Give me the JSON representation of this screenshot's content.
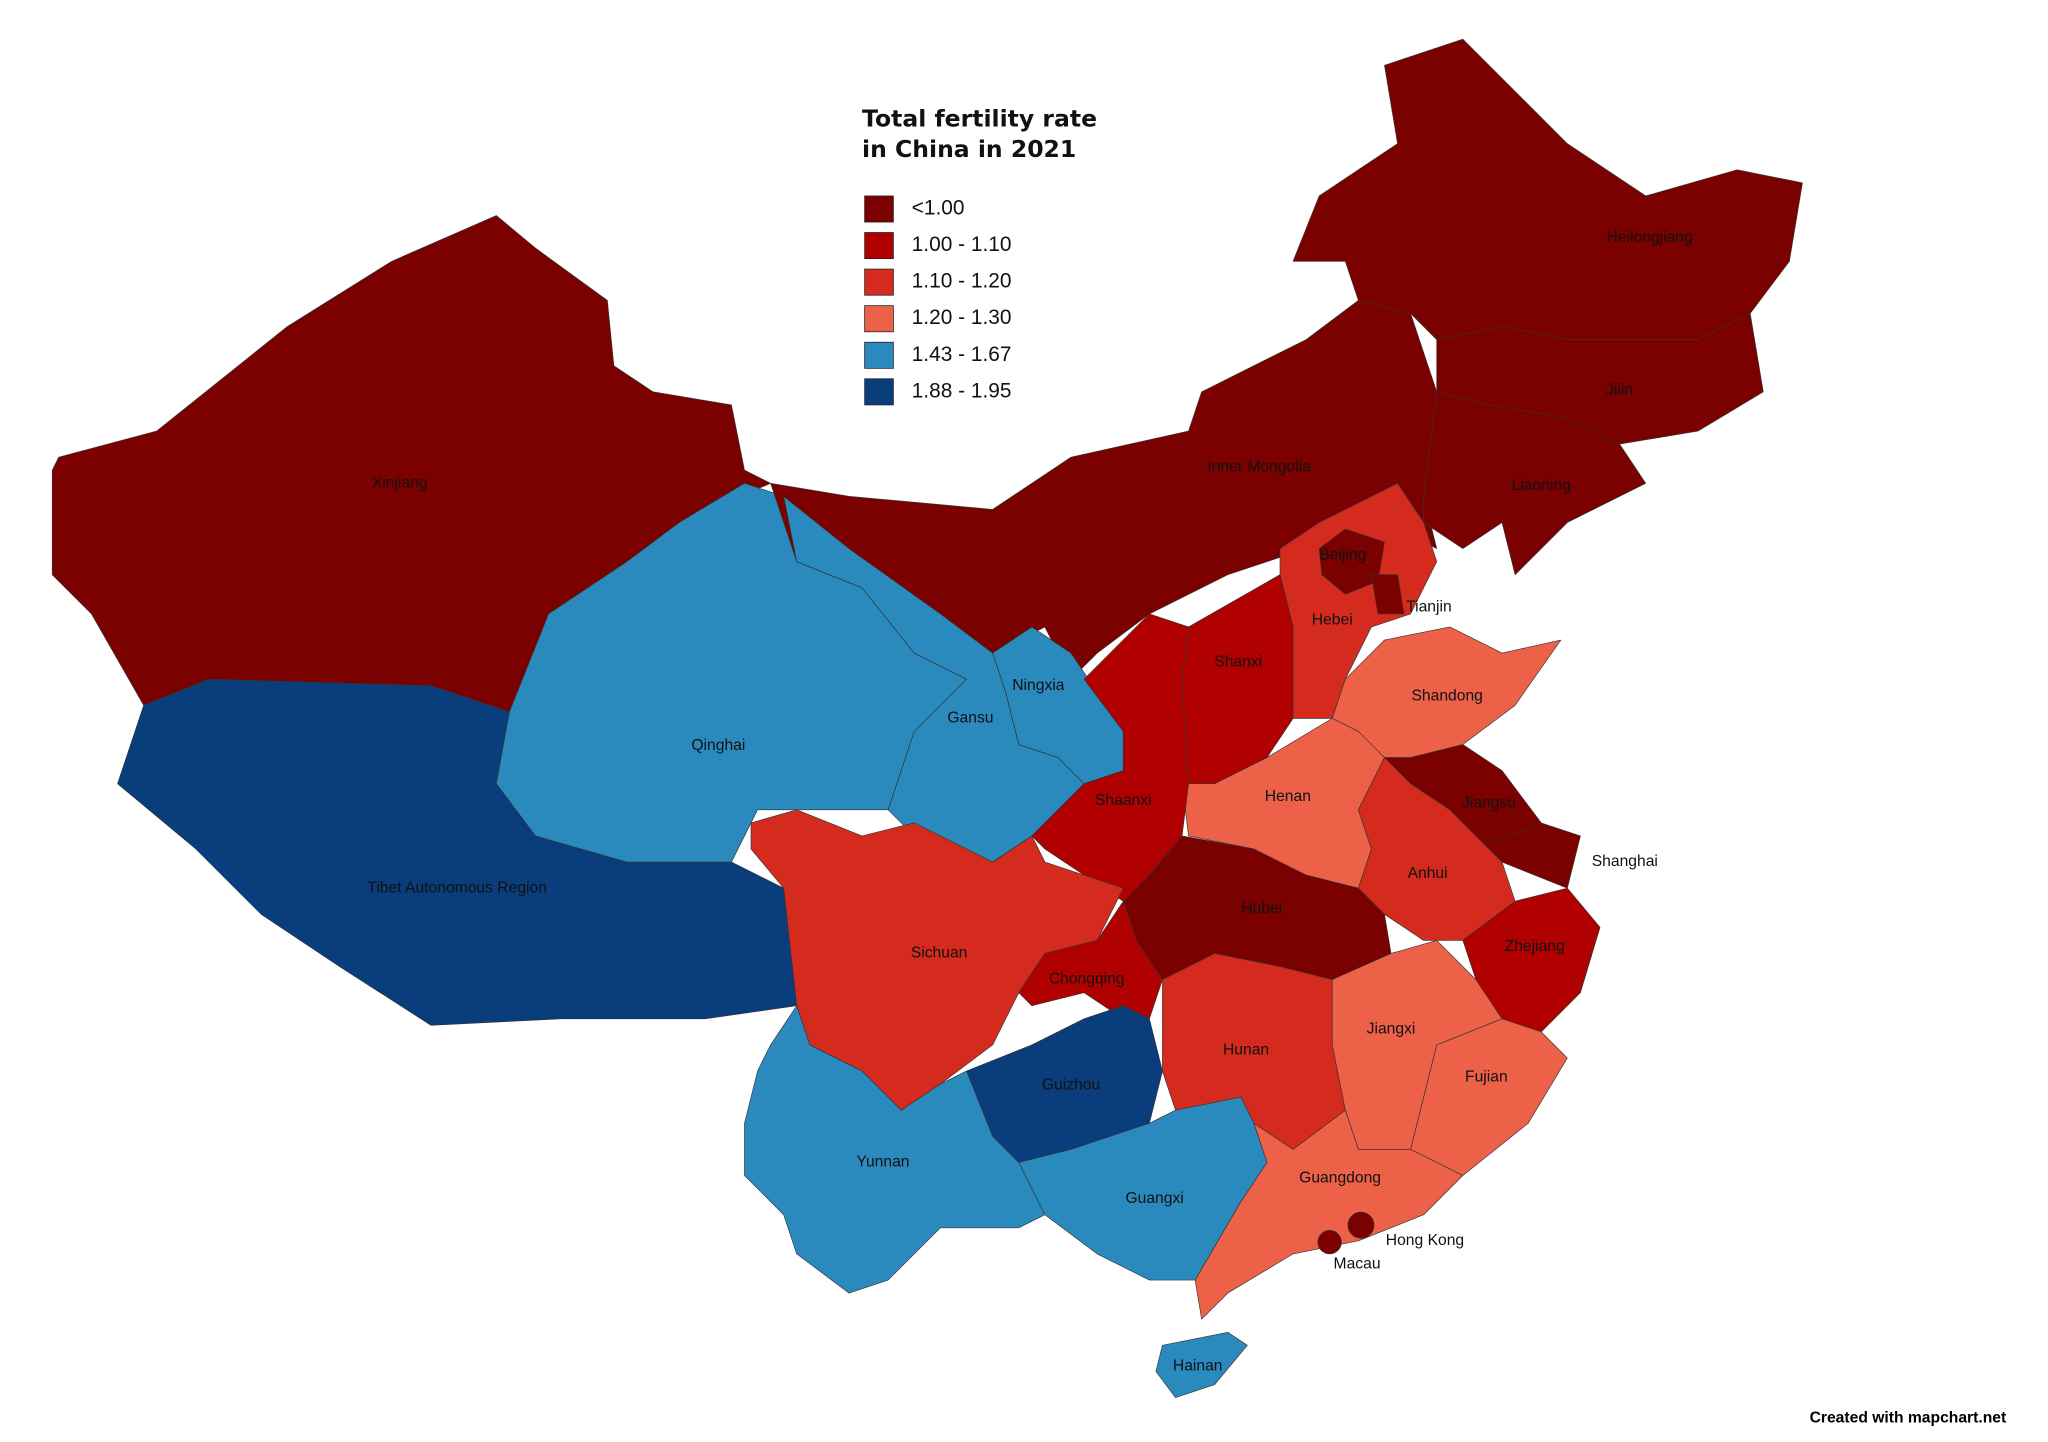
{
  "title": "Total fertility rate in China in 2021",
  "legend": [
    {
      "label": "<1.00",
      "color": "#7b0000"
    },
    {
      "label": "1.00 - 1.10",
      "color": "#b00000"
    },
    {
      "label": "1.10 - 1.20",
      "color": "#d52b1e"
    },
    {
      "label": "1.20 - 1.30",
      "color": "#ec6148"
    },
    {
      "label": "1.43 - 1.67",
      "color": "#2b8abd"
    },
    {
      "label": "1.88 - 1.95",
      "color": "#0a3d7c"
    }
  ],
  "regions": [
    {
      "name": "Xinjiang",
      "class": 0
    },
    {
      "name": "Tibet Autonomous Region",
      "class": 5
    },
    {
      "name": "Qinghai",
      "class": 4
    },
    {
      "name": "Inner Mongolia",
      "class": 0
    },
    {
      "name": "Gansu",
      "class": 4
    },
    {
      "name": "Ningxia",
      "class": 4
    },
    {
      "name": "Heilongjiang",
      "class": 0
    },
    {
      "name": "Jilin",
      "class": 0
    },
    {
      "name": "Liaoning",
      "class": 0
    },
    {
      "name": "Hebei",
      "class": 2
    },
    {
      "name": "Beijing",
      "class": 0
    },
    {
      "name": "Tianjin",
      "class": 0
    },
    {
      "name": "Shanxi",
      "class": 1
    },
    {
      "name": "Shandong",
      "class": 3
    },
    {
      "name": "Henan",
      "class": 3
    },
    {
      "name": "Shaanxi",
      "class": 1
    },
    {
      "name": "Jiangsu",
      "class": 0
    },
    {
      "name": "Shanghai",
      "class": 0
    },
    {
      "name": "Anhui",
      "class": 2
    },
    {
      "name": "Hubei",
      "class": 0
    },
    {
      "name": "Zhejiang",
      "class": 1
    },
    {
      "name": "Sichuan",
      "class": 2
    },
    {
      "name": "Chongqing",
      "class": 1
    },
    {
      "name": "Guizhou",
      "class": 5
    },
    {
      "name": "Hunan",
      "class": 2
    },
    {
      "name": "Jiangxi",
      "class": 3
    },
    {
      "name": "Fujian",
      "class": 3
    },
    {
      "name": "Guangdong",
      "class": 3
    },
    {
      "name": "Guangxi",
      "class": 4
    },
    {
      "name": "Yunnan",
      "class": 4
    },
    {
      "name": "Hainan",
      "class": 4
    },
    {
      "name": "Hong Kong",
      "class": 0
    },
    {
      "name": "Macau",
      "class": 0
    }
  ],
  "credit": "Created with mapchart.net"
}
